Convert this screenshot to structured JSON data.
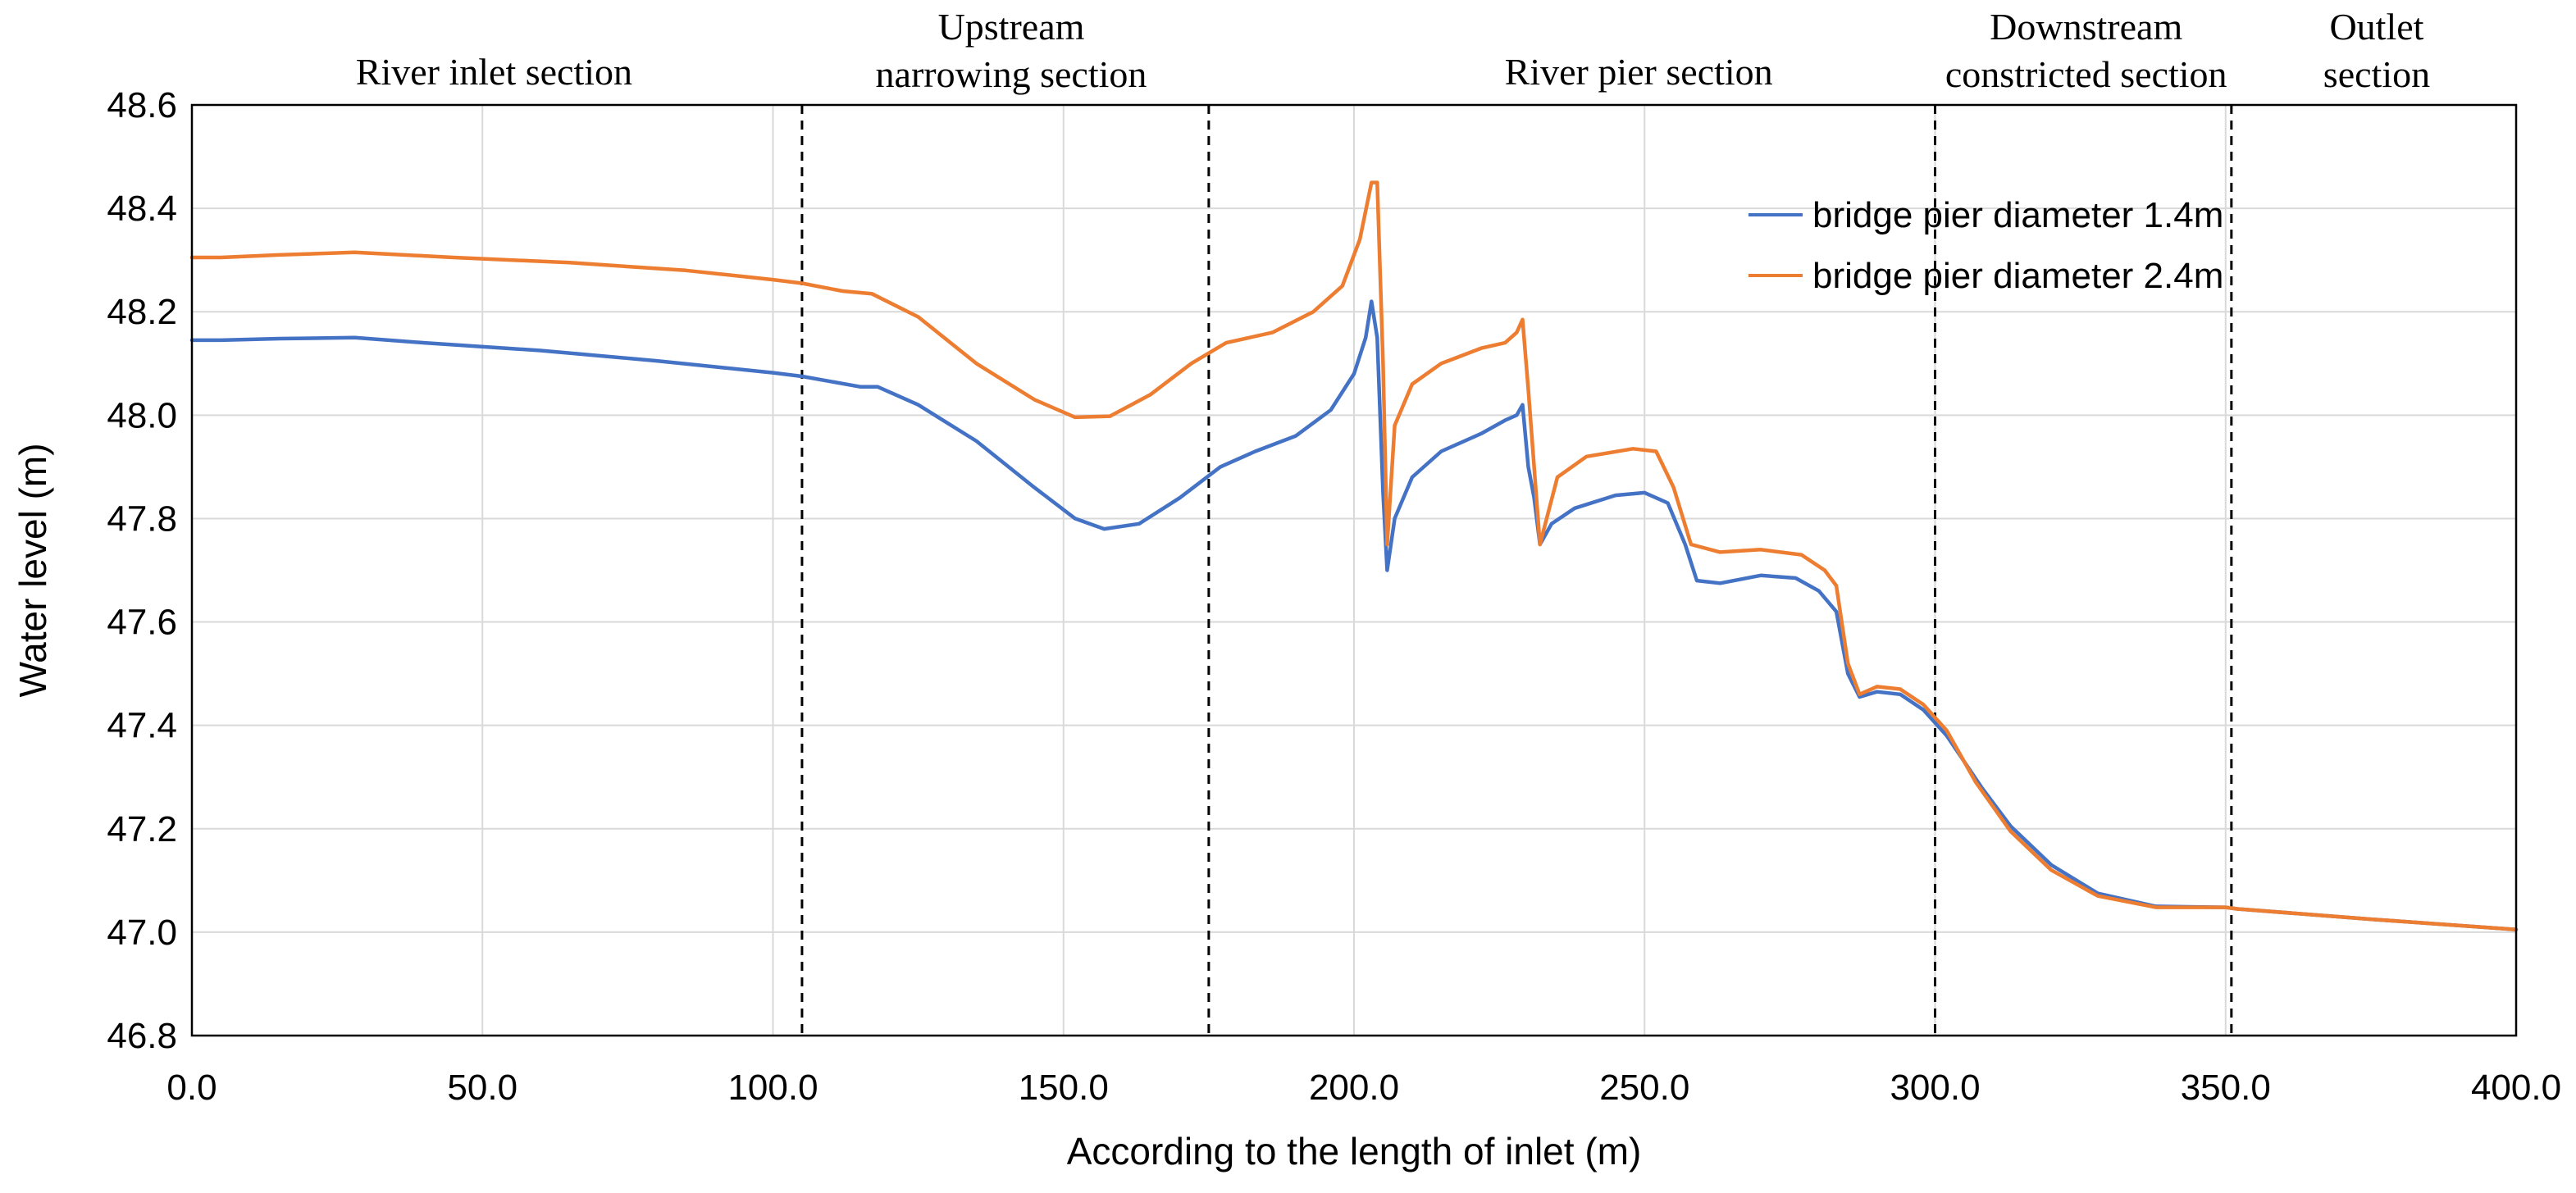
{
  "chart_data": {
    "type": "line",
    "title": "",
    "xlabel": "According to the length of inlet (m)",
    "ylabel": "Water level (m)",
    "xlim": [
      0,
      400
    ],
    "ylim": [
      46.8,
      48.6
    ],
    "x_ticks": [
      0,
      50,
      100,
      150,
      200,
      250,
      300,
      350,
      400
    ],
    "x_tick_labels": [
      "0.0",
      "50.0",
      "100.0",
      "150.0",
      "200.0",
      "250.0",
      "300.0",
      "350.0",
      "400.0"
    ],
    "y_ticks": [
      46.8,
      47.0,
      47.2,
      47.4,
      47.6,
      47.8,
      48.0,
      48.2,
      48.4,
      48.6
    ],
    "y_tick_labels": [
      "46.8",
      "47.0",
      "47.2",
      "47.4",
      "47.6",
      "47.8",
      "48.0",
      "48.2",
      "48.4",
      "48.6"
    ],
    "grid": "vertical and horizontal",
    "legend_position": "top-right",
    "section_boundaries": [
      105,
      175,
      300,
      351
    ],
    "sections": [
      {
        "lines": [
          "River inlet section"
        ],
        "x": 52
      },
      {
        "lines": [
          "Upstream",
          "narrowing section"
        ],
        "x": 141
      },
      {
        "lines": [
          "River pier section"
        ],
        "x": 249
      },
      {
        "lines": [
          "Downstream",
          "constricted section"
        ],
        "x": 326
      },
      {
        "lines": [
          "Outlet",
          "section"
        ],
        "x": 376
      }
    ],
    "series": [
      {
        "name": "bridge pier diameter 1.4m",
        "color": "#4472C4",
        "points": [
          [
            0,
            48.145
          ],
          [
            5,
            48.145
          ],
          [
            15,
            48.148
          ],
          [
            28,
            48.15
          ],
          [
            40,
            48.14
          ],
          [
            60,
            48.125
          ],
          [
            80,
            48.105
          ],
          [
            100,
            48.082
          ],
          [
            105,
            48.075
          ],
          [
            115,
            48.055
          ],
          [
            118,
            48.055
          ],
          [
            125,
            48.02
          ],
          [
            135,
            47.95
          ],
          [
            145,
            47.86
          ],
          [
            152,
            47.8
          ],
          [
            157,
            47.78
          ],
          [
            163,
            47.79
          ],
          [
            170,
            47.84
          ],
          [
            177,
            47.9
          ],
          [
            183,
            47.93
          ],
          [
            190,
            47.96
          ],
          [
            196,
            48.01
          ],
          [
            200,
            48.08
          ],
          [
            202,
            48.15
          ],
          [
            203,
            48.22
          ],
          [
            204,
            48.15
          ],
          [
            205,
            47.85
          ],
          [
            205.7,
            47.7
          ],
          [
            207,
            47.8
          ],
          [
            210,
            47.88
          ],
          [
            215,
            47.93
          ],
          [
            222,
            47.965
          ],
          [
            226,
            47.99
          ],
          [
            228,
            48.0
          ],
          [
            229,
            48.02
          ],
          [
            230,
            47.9
          ],
          [
            231,
            47.84
          ],
          [
            232,
            47.75
          ],
          [
            234,
            47.79
          ],
          [
            238,
            47.82
          ],
          [
            245,
            47.845
          ],
          [
            250,
            47.85
          ],
          [
            254,
            47.83
          ],
          [
            257,
            47.75
          ],
          [
            259,
            47.68
          ],
          [
            263,
            47.675
          ],
          [
            270,
            47.69
          ],
          [
            276,
            47.685
          ],
          [
            280,
            47.66
          ],
          [
            283,
            47.62
          ],
          [
            285,
            47.5
          ],
          [
            287,
            47.455
          ],
          [
            290,
            47.465
          ],
          [
            294,
            47.46
          ],
          [
            298,
            47.43
          ],
          [
            302,
            47.38
          ],
          [
            308,
            47.28
          ],
          [
            313,
            47.205
          ],
          [
            320,
            47.13
          ],
          [
            328,
            47.075
          ],
          [
            338,
            47.05
          ],
          [
            350,
            47.048
          ],
          [
            352,
            47.045
          ],
          [
            375,
            47.025
          ],
          [
            400,
            47.005
          ]
        ]
      },
      {
        "name": "bridge pier diameter 2.4m",
        "color": "#ED7D31",
        "points": [
          [
            0,
            48.305
          ],
          [
            5,
            48.305
          ],
          [
            15,
            48.31
          ],
          [
            28,
            48.315
          ],
          [
            45,
            48.305
          ],
          [
            65,
            48.295
          ],
          [
            85,
            48.28
          ],
          [
            100,
            48.262
          ],
          [
            105,
            48.255
          ],
          [
            112,
            48.24
          ],
          [
            117,
            48.235
          ],
          [
            125,
            48.19
          ],
          [
            135,
            48.1
          ],
          [
            145,
            48.03
          ],
          [
            152,
            47.996
          ],
          [
            158,
            47.998
          ],
          [
            165,
            48.04
          ],
          [
            172,
            48.1
          ],
          [
            178,
            48.14
          ],
          [
            186,
            48.16
          ],
          [
            193,
            48.2
          ],
          [
            198,
            48.25
          ],
          [
            201,
            48.34
          ],
          [
            203,
            48.45
          ],
          [
            204,
            48.45
          ],
          [
            205,
            48.1
          ],
          [
            205.7,
            47.75
          ],
          [
            207,
            47.98
          ],
          [
            210,
            48.06
          ],
          [
            215,
            48.1
          ],
          [
            222,
            48.13
          ],
          [
            226,
            48.14
          ],
          [
            228,
            48.16
          ],
          [
            229,
            48.185
          ],
          [
            230,
            48.05
          ],
          [
            231,
            47.9
          ],
          [
            232,
            47.75
          ],
          [
            235,
            47.88
          ],
          [
            240,
            47.92
          ],
          [
            248,
            47.935
          ],
          [
            252,
            47.93
          ],
          [
            255,
            47.86
          ],
          [
            258,
            47.75
          ],
          [
            263,
            47.735
          ],
          [
            270,
            47.74
          ],
          [
            277,
            47.73
          ],
          [
            281,
            47.7
          ],
          [
            283,
            47.67
          ],
          [
            285,
            47.52
          ],
          [
            287,
            47.46
          ],
          [
            290,
            47.475
          ],
          [
            294,
            47.47
          ],
          [
            298,
            47.44
          ],
          [
            302,
            47.39
          ],
          [
            307,
            47.29
          ],
          [
            313,
            47.195
          ],
          [
            320,
            47.12
          ],
          [
            328,
            47.07
          ],
          [
            338,
            47.048
          ],
          [
            350,
            47.048
          ],
          [
            352,
            47.045
          ],
          [
            375,
            47.025
          ],
          [
            400,
            47.005
          ]
        ]
      }
    ]
  }
}
